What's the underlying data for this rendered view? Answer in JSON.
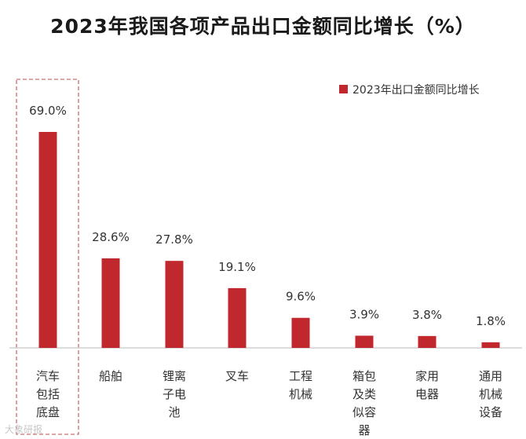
{
  "chart_data": {
    "type": "bar",
    "title": "2023年我国各项产品出口金额同比增长（%）",
    "xlabel": "",
    "ylabel": "",
    "ylim": [
      0,
      80
    ],
    "grid": false,
    "legend": {
      "position": "top-right",
      "entries": [
        "2023年出口金额同比增长"
      ]
    },
    "categories": [
      "汽车包括底盘",
      "船舶",
      "锂离子电池",
      "叉车",
      "工程机械",
      "箱包及类似容器",
      "家用电器",
      "通用机械设备"
    ],
    "category_lines": [
      [
        "汽车",
        "包括",
        "底盘"
      ],
      [
        "船舶"
      ],
      [
        "锂离",
        "子电",
        "池"
      ],
      [
        "叉车"
      ],
      [
        "工程",
        "机械"
      ],
      [
        "箱包",
        "及类",
        "似容",
        "器"
      ],
      [
        "家用",
        "电器"
      ],
      [
        "通用",
        "机械",
        "设备"
      ]
    ],
    "values": [
      69.0,
      28.6,
      27.8,
      19.1,
      9.6,
      3.9,
      3.8,
      1.8
    ],
    "value_labels": [
      "69.0%",
      "28.6%",
      "27.8%",
      "19.1%",
      "9.6%",
      "3.9%",
      "3.8%",
      "1.8%"
    ],
    "series": [
      {
        "name": "2023年出口金额同比增长",
        "values": [
          69.0,
          28.6,
          27.8,
          19.1,
          9.6,
          3.9,
          3.8,
          1.8
        ]
      }
    ],
    "highlight_index": 0,
    "bar_color": "#c0282d"
  },
  "watermark": "大象研报"
}
